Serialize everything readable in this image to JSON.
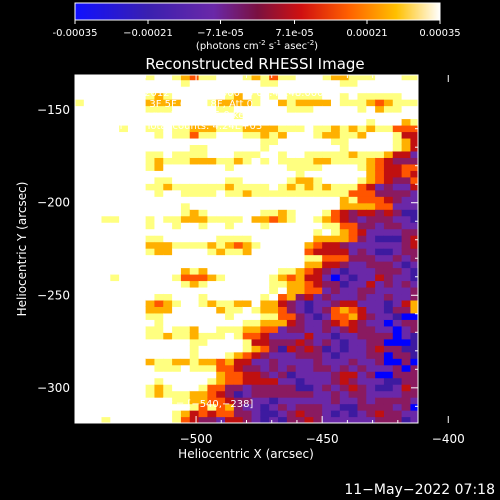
{
  "chart_data": {
    "type": "heatmap",
    "title": "Reconstructed RHESSI Image",
    "xlabel": "Heliocentric X (arcsec)",
    "ylabel": "Heliocentric Y (arcsec)",
    "xlim": [
      -548,
      -412
    ],
    "ylim": [
      -319,
      -131
    ],
    "x_ticks": [
      -500,
      -450,
      -400
    ],
    "x_tick_labels": [
      "−500",
      "−450",
      "−400"
    ],
    "y_ticks": [
      -150,
      -200,
      -250,
      -300
    ],
    "y_tick_labels": [
      "−150",
      "−200",
      "−250",
      "−300"
    ],
    "colorbar": {
      "range": [
        -0.00035,
        0.00035
      ],
      "ticks": [
        -0.00035,
        -0.00021,
        -7.1e-05,
        7.1e-05,
        0.00021,
        0.00035
      ],
      "tick_labels": [
        "-0.00035",
        "−0.00021",
        "−7.1e-05",
        "7.1e-05",
        "0.00021",
        "0.00035"
      ],
      "unit_parts": [
        "(photons cm",
        "-2",
        " s",
        "-1",
        " asec",
        "-2",
        ")"
      ]
    },
    "annotations": {
      "time_range": "31−May−2012 08:37:48.000 to 08:43:48.000",
      "detectors": "Detectors: 3F 5F 6F 7F 8F, Att 0",
      "energy_range": "Energy Range: 12.0 − 25.0 keV",
      "clean_label": "Clean",
      "total_counts": "Total counts: 4.24E+03",
      "peak_label": "Position of Peak = [−540,−238]"
    },
    "peak_position": [
      -540,
      -238
    ],
    "grid": false,
    "colormap": [
      "#0000ff",
      "#3d1aa0",
      "#6a28a8",
      "#8a1a60",
      "#c01010",
      "#ff5500",
      "#ffb000",
      "#ffff80",
      "#ffffff"
    ]
  },
  "footer": {
    "timestamp": "11−May−2022 07:18"
  }
}
